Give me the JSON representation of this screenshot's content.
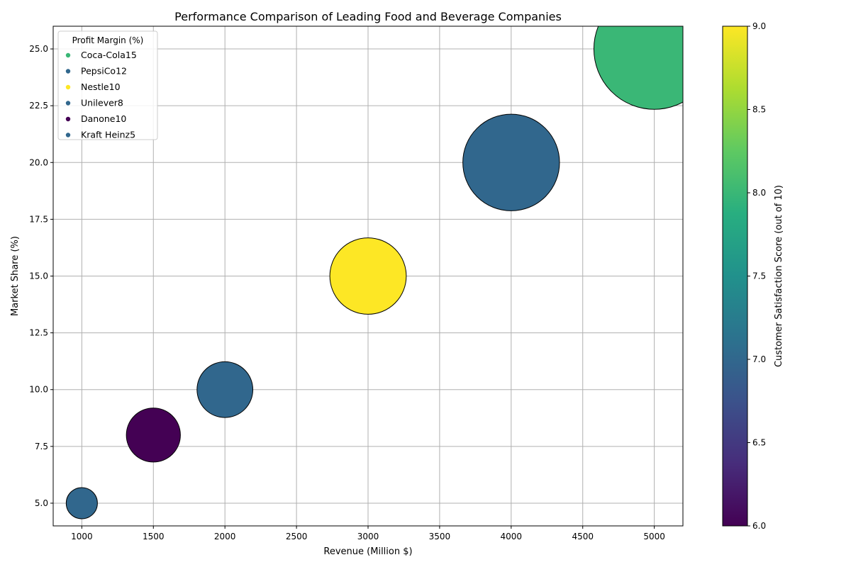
{
  "chart_data": {
    "type": "scatter",
    "title": "Performance Comparison of Leading Food and Beverage Companies",
    "xlabel": "Revenue (Million $)",
    "ylabel": "Market Share (%)",
    "xlim": [
      800,
      5200
    ],
    "ylim": [
      4,
      26
    ],
    "xticks": [
      1000,
      1500,
      2000,
      2500,
      3000,
      3500,
      4000,
      4500,
      5000
    ],
    "yticks": [
      5.0,
      7.5,
      10.0,
      12.5,
      15.0,
      17.5,
      20.0,
      22.5,
      25.0
    ],
    "grid": true,
    "legend": {
      "title": "Profit Margin (%)",
      "placement": "top-left",
      "entries": [
        "Coca-Cola15",
        "PepsiCo12",
        "Nestle10",
        "Unilever8",
        "Danone10",
        "Kraft Heinz5"
      ]
    },
    "colorbar": {
      "label": "Customer Satisfaction Score (out of 10)",
      "range": [
        6.0,
        9.0
      ],
      "ticks": [
        6.0,
        6.5,
        7.0,
        7.5,
        8.0,
        8.5,
        9.0
      ],
      "colormap": "viridis"
    },
    "points": [
      {
        "company": "Coca-Cola",
        "revenue": 5000,
        "market_share": 25,
        "profit_margin": 15,
        "satisfaction": 8
      },
      {
        "company": "PepsiCo",
        "revenue": 4000,
        "market_share": 20,
        "profit_margin": 12,
        "satisfaction": 7
      },
      {
        "company": "Nestle",
        "revenue": 3000,
        "market_share": 15,
        "profit_margin": 10,
        "satisfaction": 9
      },
      {
        "company": "Unilever",
        "revenue": 2000,
        "market_share": 10,
        "profit_margin": 8,
        "satisfaction": 7
      },
      {
        "company": "Danone",
        "revenue": 1500,
        "market_share": 8,
        "profit_margin": 10,
        "satisfaction": 6
      },
      {
        "company": "Kraft Heinz",
        "revenue": 1000,
        "market_share": 5,
        "profit_margin": 5,
        "satisfaction": 7
      }
    ]
  }
}
